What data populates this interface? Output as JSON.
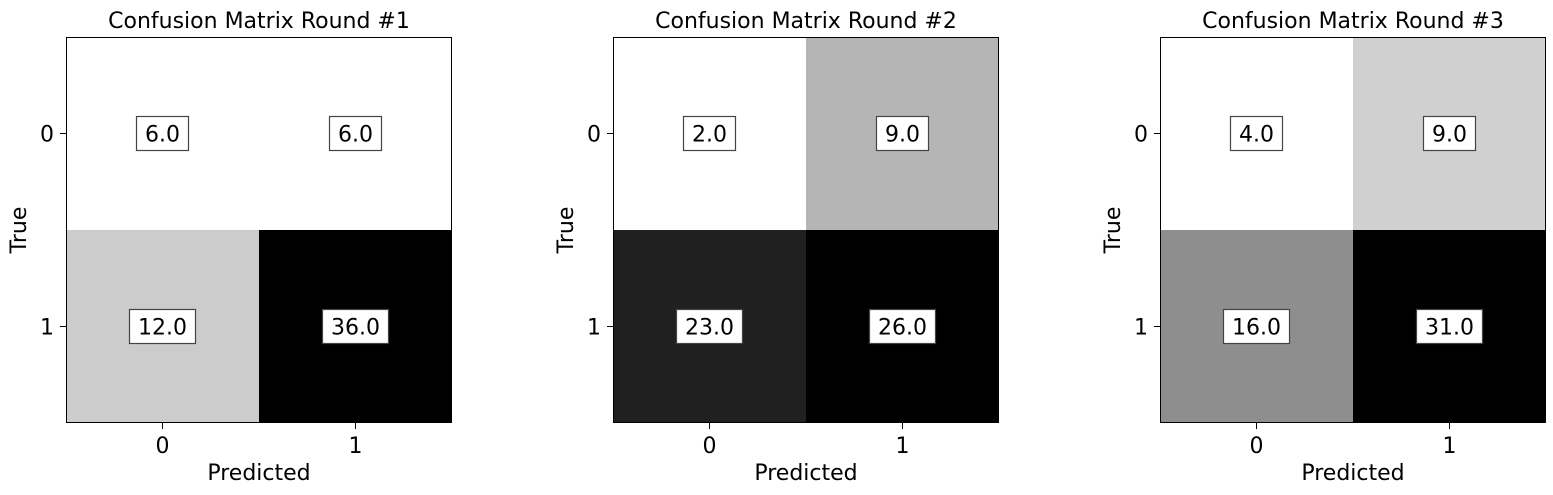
{
  "chart_data": [
    {
      "type": "heatmap",
      "title": "Confusion Matrix Round #1",
      "xlabel": "Predicted",
      "ylabel": "True",
      "x_categories": [
        "0",
        "1"
      ],
      "y_categories": [
        "0",
        "1"
      ],
      "values": [
        [
          6.0,
          6.0
        ],
        [
          12.0,
          36.0
        ]
      ],
      "value_labels": [
        [
          "6.0",
          "6.0"
        ],
        [
          "12.0",
          "36.0"
        ]
      ],
      "colormap": "gray_r"
    },
    {
      "type": "heatmap",
      "title": "Confusion Matrix Round #2",
      "xlabel": "Predicted",
      "ylabel": "True",
      "x_categories": [
        "0",
        "1"
      ],
      "y_categories": [
        "0",
        "1"
      ],
      "values": [
        [
          2.0,
          9.0
        ],
        [
          23.0,
          26.0
        ]
      ],
      "value_labels": [
        [
          "2.0",
          "9.0"
        ],
        [
          "23.0",
          "26.0"
        ]
      ],
      "colormap": "gray_r"
    },
    {
      "type": "heatmap",
      "title": "Confusion Matrix Round #3",
      "xlabel": "Predicted",
      "ylabel": "True",
      "x_categories": [
        "0",
        "1"
      ],
      "y_categories": [
        "0",
        "1"
      ],
      "values": [
        [
          4.0,
          9.0
        ],
        [
          16.0,
          31.0
        ]
      ],
      "value_labels": [
        [
          "4.0",
          "9.0"
        ],
        [
          "16.0",
          "31.0"
        ]
      ],
      "colormap": "gray_r"
    }
  ]
}
